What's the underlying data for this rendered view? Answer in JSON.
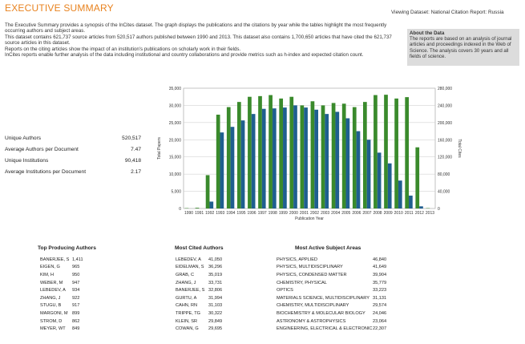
{
  "header": {
    "title": "EXECUTIVE SUMMARY",
    "viewing_dataset": "Viewing Dataset: National Citation Report: Russia"
  },
  "intro": {
    "paragraphs": [
      "The Executive Summary provides a synopsis of the InCites dataset. The graph displays the publications and the citations by year while the tables highlight the most frequently occurring authors and subject areas.",
      "This dataset contains 621,737 source articles from 520,517 authors published between 1990 and 2013. This dataset also contains 1,700,650 articles that have cited the 621,737 source articles in this dataset.",
      "Reports on the citing articles show the impact of an institution's publications on scholarly work in their fields.",
      "InCites reports enable further analysis of the data including institutional and country collaborations and provide metrics such as h-index and expected citation count."
    ]
  },
  "about": {
    "title": "About the Data",
    "text": "The reports are based on an analysis of journal articles and proceedings indexed in the Web of Science. The analysis covers 30 years and all fields of science."
  },
  "stats": [
    {
      "label": "Unique Authors",
      "value": "520,517"
    },
    {
      "label": "Average Authors per Document",
      "value": "7.47"
    },
    {
      "label": "Unique Institutions",
      "value": "90,418"
    },
    {
      "label": "Average Institutions per Document",
      "value": "2.17"
    }
  ],
  "colors": {
    "title": "#e8821e",
    "papers_bar": "#3a8a2c",
    "cites_bar": "#1f5f8f",
    "about_bg": "#dcdcdc"
  },
  "chart_data": {
    "type": "bar",
    "xlabel": "Publication Year",
    "ylabel_left": "Total Papers",
    "ylabel_right": "Total Cites",
    "categories": [
      "1990",
      "1991",
      "1992",
      "1993",
      "1994",
      "1995",
      "1996",
      "1997",
      "1998",
      "1999",
      "2000",
      "2001",
      "2002",
      "2003",
      "2004",
      "2005",
      "2006",
      "2007",
      "2008",
      "2009",
      "2010",
      "2011",
      "2012",
      "2013"
    ],
    "ylim_left": [
      0,
      35000
    ],
    "ylim_right": [
      0,
      280000
    ],
    "yticks_left": [
      "0",
      "5,000",
      "10,000",
      "15,000",
      "20,000",
      "25,000",
      "30,000",
      "35,000"
    ],
    "yticks_right": [
      "0",
      "40,000",
      "80,000",
      "120,000",
      "160,000",
      "200,000",
      "240,000",
      "280,000"
    ],
    "grid": true,
    "series": [
      {
        "axis": "left",
        "values": [
          100,
          200,
          9700,
          27300,
          29500,
          31000,
          32500,
          32700,
          33000,
          32000,
          32500,
          30000,
          31200,
          30000,
          30700,
          30500,
          29500,
          31000,
          33000,
          33100,
          32000,
          32400,
          17800,
          100
        ]
      },
      {
        "axis": "right",
        "values": [
          0,
          0,
          16000,
          177000,
          190000,
          205000,
          220000,
          232000,
          233000,
          235000,
          240000,
          235000,
          230000,
          220000,
          225000,
          210000,
          180000,
          160000,
          130000,
          105000,
          65000,
          30000,
          5000,
          0
        ]
      }
    ]
  },
  "tables": {
    "top_producing": {
      "title": "Top Producing Authors",
      "rows": [
        {
          "name": "BANERJEE, S",
          "value": "1,411"
        },
        {
          "name": "EIGEN, G",
          "value": "965"
        },
        {
          "name": "KIM, H",
          "value": "950"
        },
        {
          "name": "WEBER, M",
          "value": "947"
        },
        {
          "name": "LEBEDEV, A",
          "value": "934"
        },
        {
          "name": "ZHANG, J",
          "value": "922"
        },
        {
          "name": "STUGU, B",
          "value": "917"
        },
        {
          "name": "MARGONI, M",
          "value": "899"
        },
        {
          "name": "STROM, D",
          "value": "862"
        },
        {
          "name": "MEYER, WT",
          "value": "849"
        }
      ]
    },
    "most_cited": {
      "title": "Most Cited Authors",
      "rows": [
        {
          "name": "LEBEDEV, A",
          "value": "41,050"
        },
        {
          "name": "EIDELMAN, S",
          "value": "36,296"
        },
        {
          "name": "GRAB, C",
          "value": "35,019"
        },
        {
          "name": "ZHANG, J",
          "value": "33,731"
        },
        {
          "name": "BANERJEE, S",
          "value": "32,806"
        },
        {
          "name": "GURTU, A",
          "value": "31,994"
        },
        {
          "name": "CAHN, RN",
          "value": "31,103"
        },
        {
          "name": "TRIPPE, TG",
          "value": "30,322"
        },
        {
          "name": "KLEIN, SR",
          "value": "29,849"
        },
        {
          "name": "COWAN, G",
          "value": "29,695"
        }
      ]
    },
    "subject_areas": {
      "title": "Most Active Subject Areas",
      "rows": [
        {
          "name": "PHYSICS, APPLIED",
          "value": "46,840"
        },
        {
          "name": "PHYSICS, MULTIDISCIPLINARY",
          "value": "41,649"
        },
        {
          "name": "PHYSICS, CONDENSED MATTER",
          "value": "39,904"
        },
        {
          "name": "CHEMISTRY, PHYSICAL",
          "value": "35,779"
        },
        {
          "name": "OPTICS",
          "value": "33,223"
        },
        {
          "name": "MATERIALS SCIENCE, MULTIDISCIPLINARY",
          "value": "31,131"
        },
        {
          "name": "CHEMISTRY, MULTIDISCIPLINARY",
          "value": "29,574"
        },
        {
          "name": "BIOCHEMISTRY & MOLECULAR BIOLOGY",
          "value": "24,046"
        },
        {
          "name": "ASTRONOMY & ASTROPHYSICS",
          "value": "23,064"
        },
        {
          "name": "ENGINEERING, ELECTRICAL & ELECTRONIC",
          "value": "22,307"
        }
      ]
    }
  }
}
